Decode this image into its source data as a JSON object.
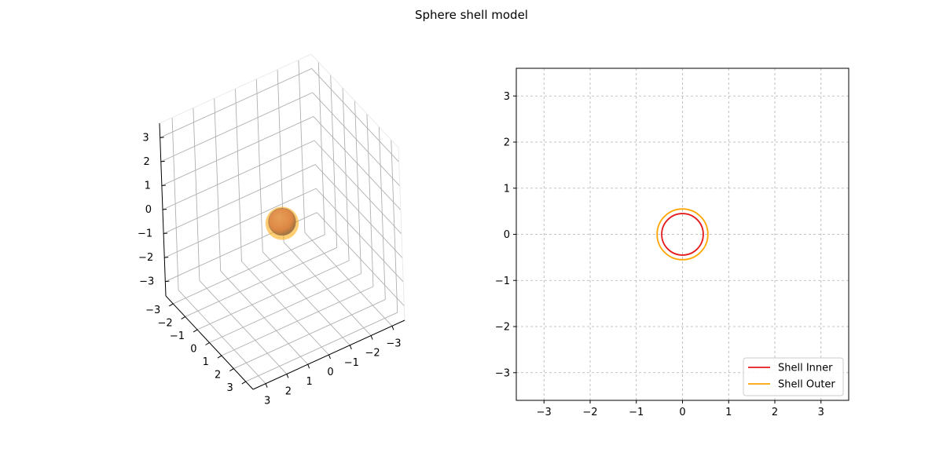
{
  "figure": {
    "title": "Sphere shell model"
  },
  "colors": {
    "inner": "#e41a1c",
    "outer": "#ffa500",
    "sphere": "#d9803f",
    "grid3d": "#b0b0b0",
    "grid2d": "#b0b0b0"
  },
  "chart_data": [
    {
      "type": "scatter",
      "kind": "3d-surface",
      "title": "",
      "xlabel": "",
      "ylabel": "",
      "zlabel": "",
      "xlim": [
        -3.6,
        3.6
      ],
      "ylim": [
        -3.6,
        3.6
      ],
      "zlim": [
        -3.6,
        3.6
      ],
      "xticks": [
        "3",
        "2",
        "1",
        "0",
        "−1",
        "−2",
        "−3"
      ],
      "yticks": [
        "−3",
        "−2",
        "−1",
        "0",
        "1",
        "2",
        "3"
      ],
      "zticks": [
        "3",
        "2",
        "1",
        "0",
        "−1",
        "−2",
        "−3"
      ],
      "grid": true,
      "series": [
        {
          "name": "",
          "shape": "sphere",
          "center": [
            0,
            0,
            0
          ],
          "radius": 0.45
        },
        {
          "name": "",
          "shape": "sphere",
          "center": [
            0,
            0,
            0
          ],
          "radius": 0.55
        }
      ]
    },
    {
      "type": "line",
      "title": "",
      "xlabel": "",
      "ylabel": "",
      "xlim": [
        -3.6,
        3.6
      ],
      "ylim": [
        -3.6,
        3.6
      ],
      "xticks": [
        "−3",
        "−2",
        "−1",
        "0",
        "1",
        "2",
        "3"
      ],
      "yticks": [
        "3",
        "2",
        "1",
        "0",
        "−1",
        "−2",
        "−3"
      ],
      "grid": true,
      "legend": "lower-right",
      "series": [
        {
          "name": "Shell Inner",
          "shape": "circle",
          "center": [
            0,
            0
          ],
          "radius": 0.45
        },
        {
          "name": "Shell Outer",
          "shape": "circle",
          "center": [
            0,
            0
          ],
          "radius": 0.55
        }
      ]
    }
  ]
}
